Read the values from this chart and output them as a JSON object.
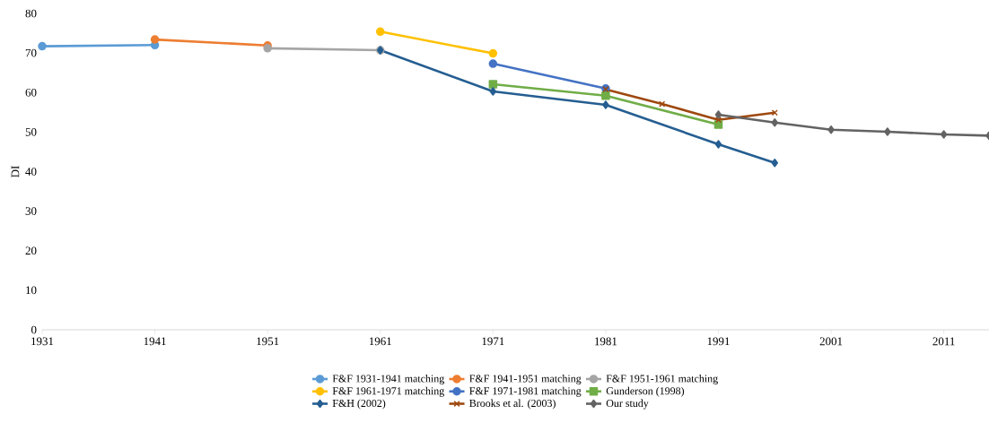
{
  "chart_data": {
    "type": "line",
    "ylabel": "DI",
    "xlim": [
      1931,
      2015
    ],
    "xticks": [
      1931,
      1941,
      1951,
      1961,
      1971,
      1981,
      1991,
      2001,
      2011
    ],
    "ylim": [
      0,
      80
    ],
    "yticks": [
      0,
      10,
      20,
      30,
      40,
      50,
      60,
      70,
      80
    ],
    "legend": "bottom",
    "grid": false,
    "line_style": "solid",
    "series": [
      {
        "name": "F&F 1931-1941 matching",
        "color": "#5b9bd5",
        "marker": "circle",
        "x": [
          1931,
          1941
        ],
        "values": [
          71.7,
          72.0
        ]
      },
      {
        "name": "F&F 1941-1951 matching",
        "color": "#ed7d31",
        "marker": "circle",
        "x": [
          1941,
          1951
        ],
        "values": [
          73.4,
          71.9
        ]
      },
      {
        "name": "F&F 1951-1961 matching",
        "color": "#a5a5a5",
        "marker": "circle",
        "x": [
          1951,
          1961
        ],
        "values": [
          71.2,
          70.7
        ]
      },
      {
        "name": "F&F 1961-1971 matching",
        "color": "#ffc000",
        "marker": "circle",
        "x": [
          1961,
          1971
        ],
        "values": [
          75.4,
          69.9
        ]
      },
      {
        "name": "F&F 1971-1981 matching",
        "color": "#4472c4",
        "marker": "circle",
        "x": [
          1971,
          1981
        ],
        "values": [
          67.3,
          61.0
        ]
      },
      {
        "name": "Gunderson (1998)",
        "color": "#70ad47",
        "marker": "square",
        "x": [
          1971,
          1981,
          1991
        ],
        "values": [
          62.1,
          59.2,
          51.9
        ]
      },
      {
        "name": "F&H (2002)",
        "color": "#255e91",
        "marker": "diamond",
        "x": [
          1961,
          1971,
          1981,
          1991,
          1996
        ],
        "values": [
          70.7,
          60.3,
          56.9,
          46.9,
          42.2
        ]
      },
      {
        "name": "Brooks et al. (2003)",
        "color": "#9e480e",
        "marker": "cross",
        "x": [
          1981,
          1986,
          1991,
          1996
        ],
        "values": [
          60.8,
          57.1,
          53.1,
          54.9
        ]
      },
      {
        "name": "Our study",
        "color": "#636363",
        "marker": "diamond",
        "x": [
          1991,
          1996,
          2001,
          2006,
          2011,
          2015
        ],
        "values": [
          54.4,
          52.4,
          50.6,
          50.1,
          49.4,
          49.1
        ]
      }
    ]
  }
}
